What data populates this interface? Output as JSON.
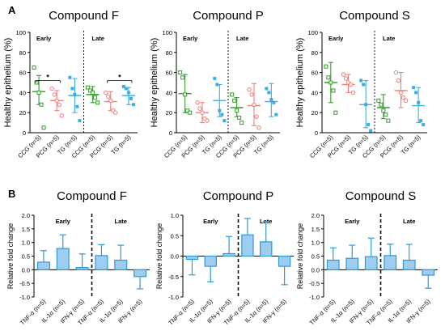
{
  "panel_letters": {
    "a": "A",
    "b": "B"
  },
  "colors": {
    "CCG": "#3a9a2e",
    "PCG": "#f07d7d",
    "TG": "#3aaee0",
    "bar_fill": "#9ecdf0",
    "bar_stroke": "#2b9ad6",
    "axis": "#000000",
    "divider": "#000000"
  },
  "chart_data": [
    {
      "id": "A-F",
      "type": "scatter",
      "title": "Compound F",
      "ylabel": "Healthy epithelium (%)",
      "ylim": [
        0,
        100
      ],
      "yticks": [
        0,
        20,
        40,
        60,
        80,
        100
      ],
      "categories": [
        "CCG (n=5)",
        "PCG (n=5)",
        "TG (n=5)",
        "CCG (n=5)",
        "PCG (n=5)",
        "TG (n=5)"
      ],
      "groups": [
        "CCG",
        "PCG",
        "TG",
        "CCG",
        "PCG",
        "TG"
      ],
      "section_labels": [
        "Early",
        "Late"
      ],
      "points": [
        [
          65,
          50,
          40,
          28,
          5
        ],
        [
          44,
          38,
          32,
          28,
          17
        ],
        [
          55,
          44,
          38,
          26,
          12
        ],
        [
          45,
          42,
          40,
          35,
          30
        ],
        [
          40,
          36,
          32,
          22,
          20
        ],
        [
          46,
          44,
          40,
          34,
          28
        ]
      ],
      "mean": [
        41,
        32,
        37,
        38,
        31,
        37
      ],
      "err": [
        [
          28,
          57
        ],
        [
          22,
          42
        ],
        [
          20,
          54
        ],
        [
          30,
          46
        ],
        [
          22,
          41
        ],
        [
          28,
          45
        ]
      ],
      "significance": [
        {
          "between": [
            0,
            1
          ],
          "y": 52,
          "label": "*"
        },
        {
          "between": [
            4,
            5
          ],
          "y": 52,
          "label": "*"
        }
      ]
    },
    {
      "id": "A-P",
      "type": "scatter",
      "title": "Compound P",
      "ylabel": "Healthy epithelium (%)",
      "ylim": [
        0,
        100
      ],
      "yticks": [
        0,
        20,
        40,
        60,
        80,
        100
      ],
      "categories": [
        "CCG (n=5)",
        "PCG (n=5)",
        "TG (n=5)",
        "CCG (n=5)",
        "PCG (n=5)",
        "TG (n=5)"
      ],
      "groups": [
        "CCG",
        "PCG",
        "TG",
        "CCG",
        "PCG",
        "TG"
      ],
      "section_labels": [
        "Early",
        "Late"
      ],
      "points": [
        [
          60,
          55,
          38,
          22,
          20
        ],
        [
          30,
          24,
          20,
          14,
          12
        ],
        [
          54,
          48,
          22,
          18,
          12
        ],
        [
          38,
          32,
          22,
          15,
          10
        ],
        [
          43,
          38,
          28,
          16,
          5
        ],
        [
          44,
          40,
          33,
          30,
          18
        ]
      ],
      "mean": [
        39,
        20,
        32,
        25,
        27,
        31
      ],
      "err": [
        [
          20,
          58
        ],
        [
          10,
          30
        ],
        [
          16,
          48
        ],
        [
          16,
          35
        ],
        [
          7,
          49
        ],
        [
          16,
          49
        ]
      ],
      "significance": []
    },
    {
      "id": "A-S",
      "type": "scatter",
      "title": "Compound S",
      "ylabel": "Healthy epithelium (%)",
      "ylim": [
        0,
        100
      ],
      "yticks": [
        0,
        20,
        40,
        60,
        80,
        100
      ],
      "categories": [
        "CCG (n=5)",
        "PCG (n=5)",
        "TG (n=5)",
        "CCG (n=5)",
        "PCG (n=5)",
        "TG (n=5)"
      ],
      "groups": [
        "CCG",
        "PCG",
        "TG",
        "CCG",
        "PCG",
        "TG"
      ],
      "section_labels": [
        "Early",
        "Late"
      ],
      "points": [
        [
          66,
          55,
          50,
          42,
          20
        ],
        [
          58,
          54,
          50,
          48,
          40
        ],
        [
          52,
          48,
          28,
          8,
          2
        ],
        [
          32,
          28,
          22,
          18,
          12
        ],
        [
          60,
          52,
          40,
          35,
          32
        ],
        [
          45,
          40,
          30,
          12,
          8
        ]
      ],
      "mean": [
        50,
        48,
        28,
        25,
        42,
        27
      ],
      "err": [
        [
          30,
          70
        ],
        [
          40,
          58
        ],
        [
          5,
          52
        ],
        [
          14,
          38
        ],
        [
          25,
          60
        ],
        [
          10,
          45
        ]
      ],
      "significance": []
    },
    {
      "id": "B-F",
      "type": "bar",
      "title": "Compound F",
      "ylabel": "Relative fold change",
      "ylim": [
        -1.0,
        2.0
      ],
      "yticks": [
        -1.0,
        -0.5,
        0.0,
        0.5,
        1.0,
        1.5,
        2.0
      ],
      "categories": [
        "TNF-α (n=5)",
        "IL-1α (n=5)",
        "IFN-γ (n=5)",
        "TNF-α (n=5)",
        "IL-1α (n=5)",
        "IFN-γ (n=5)"
      ],
      "section_labels": [
        "Early",
        "Late"
      ],
      "values": [
        0.28,
        0.78,
        0.08,
        0.52,
        0.35,
        -0.25
      ],
      "err": [
        0.42,
        0.5,
        0.5,
        0.4,
        0.55,
        0.45
      ]
    },
    {
      "id": "B-P",
      "type": "bar",
      "title": "Compound P",
      "ylabel": "Relative fold change",
      "ylim": [
        -1.0,
        1.0
      ],
      "yticks": [
        -1.0,
        -0.5,
        0.0,
        0.5,
        1.0
      ],
      "categories": [
        "TNF-α (n=5)",
        "IL-1α (n=5)",
        "IFN-γ (n=5)",
        "TNF-α (n=5)",
        "IL-1α (n=5)",
        "IFN-γ (n=5)"
      ],
      "section_labels": [
        "Early",
        "Late"
      ],
      "values": [
        -0.08,
        -0.25,
        0.06,
        0.52,
        0.35,
        -0.25
      ],
      "err": [
        0.38,
        0.38,
        0.42,
        0.4,
        0.5,
        0.45
      ]
    },
    {
      "id": "B-S",
      "type": "bar",
      "title": "Compound S",
      "ylabel": "Relative fold change",
      "ylim": [
        -1.0,
        2.0
      ],
      "yticks": [
        -1.0,
        -0.5,
        0.0,
        0.5,
        1.0,
        1.5,
        2.0
      ],
      "categories": [
        "TNF-α (n=5)",
        "IL-1α (n=5)",
        "IFN-γ (n=5)",
        "TNF-α (n=5)",
        "IL-1α (n=5)",
        "IFN-γ (n=5)"
      ],
      "section_labels": [
        "Early",
        "Late"
      ],
      "values": [
        0.35,
        0.42,
        0.48,
        0.52,
        0.35,
        -0.2
      ],
      "err": [
        0.45,
        0.48,
        0.68,
        0.42,
        0.58,
        0.48
      ]
    }
  ]
}
